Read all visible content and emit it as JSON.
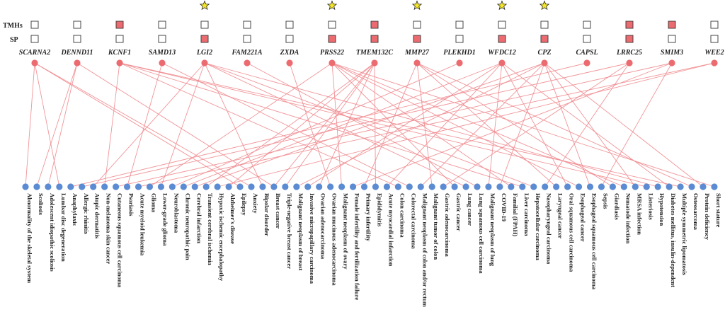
{
  "row_labels": {
    "tmhs": "TMHs",
    "sp": "SP"
  },
  "colors": {
    "gene_node": "#ec6b70",
    "disease_node": "#5b8bd3",
    "edge": "#f08a8e",
    "box_filled": "#ec6b70",
    "box_empty": "#ffffff",
    "star": "#f5e62a"
  },
  "genes": [
    {
      "name": "SCARNA2",
      "tmh": false,
      "sp": false,
      "star": false
    },
    {
      "name": "DENND11",
      "tmh": false,
      "sp": false,
      "star": false
    },
    {
      "name": "KCNF1",
      "tmh": true,
      "sp": false,
      "star": false
    },
    {
      "name": "SAMD13",
      "tmh": false,
      "sp": false,
      "star": false
    },
    {
      "name": "LGI2",
      "tmh": false,
      "sp": true,
      "star": true
    },
    {
      "name": "FAM221A",
      "tmh": false,
      "sp": false,
      "star": false
    },
    {
      "name": "ZXDA",
      "tmh": false,
      "sp": false,
      "star": false
    },
    {
      "name": "PRSS22",
      "tmh": false,
      "sp": true,
      "star": true
    },
    {
      "name": "TMEM132C",
      "tmh": true,
      "sp": true,
      "star": false
    },
    {
      "name": "MMP27",
      "tmh": false,
      "sp": true,
      "star": true
    },
    {
      "name": "PLEKHD1",
      "tmh": false,
      "sp": false,
      "star": false
    },
    {
      "name": "WFDC12",
      "tmh": false,
      "sp": true,
      "star": true
    },
    {
      "name": "CPZ",
      "tmh": false,
      "sp": true,
      "star": true
    },
    {
      "name": "CAPSL",
      "tmh": false,
      "sp": false,
      "star": false
    },
    {
      "name": "LRRC25",
      "tmh": true,
      "sp": true,
      "star": false
    },
    {
      "name": "SMIM3",
      "tmh": true,
      "sp": false,
      "star": false
    },
    {
      "name": "WEE2",
      "tmh": false,
      "sp": false,
      "star": false
    }
  ],
  "diseases": [
    "Abnormality of the skeletal system",
    "Scoliosis",
    "Adolescent idiopathic scoliosis",
    "Lumbar disc degeneration",
    "Anaphylaxis",
    "Allergic rhinitis",
    "Atopic dermatitis",
    "Non-melanoma skin cancer",
    "Cutaneous squamous cell carcinoma",
    "Psoriasis",
    "Acute myeloid leukemia",
    "Glioma",
    "Lower-grade glioma",
    "Neuroblastoma",
    "Chronic neuropathic pain",
    "Cerebral infarction",
    "Transient cerebral ischemia",
    "Hypoxic ischemic encephalopathy",
    "Alzheimer's disease",
    "Epilepsy",
    "Anxiety",
    "Bipolar disorder",
    "Breast cancer",
    "Triple-negative breast cancer",
    "Malignant neoplasm of breast",
    "Invasive micropapillary carcinoma",
    "Ovarian adenocarcinoma",
    "Ovarian mucinous adenocarcinoma",
    "Malignant neoplasm of ovary",
    "Female infertility and fertilization failure",
    "Primary infertility",
    "Epididymitis",
    "Acute myocardial infarction",
    "Colon carcinoma",
    "Colorectal carcinoma",
    "Malignant neoplasm of colon and/or rectum",
    "Malignant tumor of colon",
    "Gastric adenocarcinoma",
    "Gastric cancer",
    "Lung cancer",
    "Lung squamous cell carcinoma",
    "Malignant neoplasm of lung",
    "COVID-19",
    "Familial (FPAH)",
    "Liver carcinoma",
    "Hepatocellular carcinoma",
    "Nasopharyngeal carcinoma",
    "Laryngeal cancer",
    "Oral squamous cell carcinoma",
    "Esophageal cancer",
    "Esophageal squamous cell carcinoma",
    "Sepsis",
    "Giardiasis",
    "Nematode infection",
    "MRSA infection",
    "Listeriosis",
    "Hypotension",
    "Diabetes mellitus, insulin-dependent",
    "Multiple symmetric lipomatosis",
    "Osteosarcoma",
    "Protein deficiency",
    "Short stature"
  ],
  "edges": [
    [
      0,
      0
    ],
    [
      0,
      3
    ],
    [
      0,
      19
    ],
    [
      0,
      20
    ],
    [
      1,
      1
    ],
    [
      1,
      2
    ],
    [
      1,
      22
    ],
    [
      2,
      7
    ],
    [
      2,
      33
    ],
    [
      2,
      44
    ],
    [
      2,
      55
    ],
    [
      2,
      58
    ],
    [
      3,
      9
    ],
    [
      3,
      34
    ],
    [
      4,
      6
    ],
    [
      4,
      12
    ],
    [
      4,
      21
    ],
    [
      4,
      39
    ],
    [
      4,
      45
    ],
    [
      4,
      56
    ],
    [
      5,
      40
    ],
    [
      6,
      27
    ],
    [
      7,
      11
    ],
    [
      7,
      28
    ],
    [
      7,
      38
    ],
    [
      7,
      43
    ],
    [
      7,
      49
    ],
    [
      7,
      53
    ],
    [
      7,
      61
    ],
    [
      8,
      16
    ],
    [
      8,
      18
    ],
    [
      8,
      22
    ],
    [
      8,
      23
    ],
    [
      8,
      26
    ],
    [
      8,
      31
    ],
    [
      9,
      30
    ],
    [
      9,
      36
    ],
    [
      9,
      47
    ],
    [
      9,
      52
    ],
    [
      9,
      59
    ],
    [
      10,
      13
    ],
    [
      11,
      14
    ],
    [
      11,
      25
    ],
    [
      11,
      32
    ],
    [
      11,
      41
    ],
    [
      11,
      48
    ],
    [
      11,
      57
    ],
    [
      12,
      15
    ],
    [
      12,
      24
    ],
    [
      12,
      35
    ],
    [
      12,
      42
    ],
    [
      12,
      50
    ],
    [
      12,
      54
    ],
    [
      12,
      60
    ],
    [
      13,
      4
    ],
    [
      14,
      5
    ],
    [
      14,
      37
    ],
    [
      14,
      46
    ],
    [
      15,
      8
    ],
    [
      15,
      29
    ],
    [
      15,
      51
    ],
    [
      16,
      10
    ],
    [
      16,
      17
    ]
  ]
}
